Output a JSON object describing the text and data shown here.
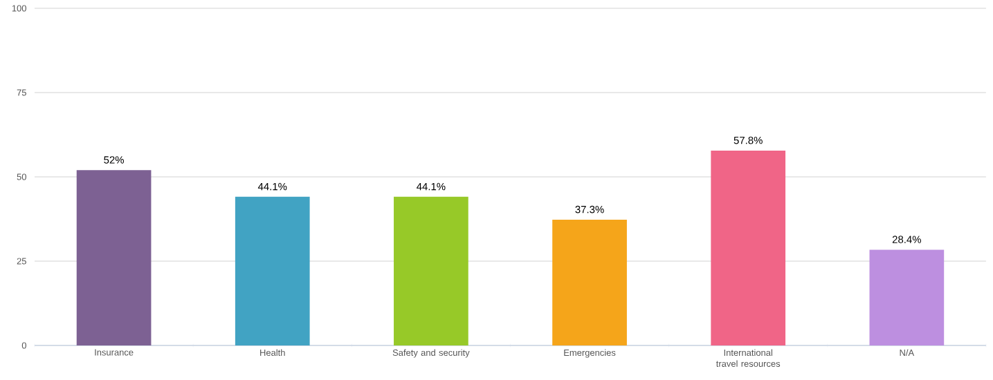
{
  "chart_data": {
    "type": "bar",
    "categories": [
      "Insurance",
      "Health",
      "Safety and security",
      "Emergencies",
      "International travel resources",
      "N/A"
    ],
    "values": [
      52,
      44.1,
      44.1,
      37.3,
      57.8,
      28.4
    ],
    "colors": [
      "#7d6193",
      "#41a3c3",
      "#97c928",
      "#f5a51a",
      "#f06587",
      "#bd8fe0"
    ],
    "value_labels": [
      "52%",
      "44.1%",
      "44.1%",
      "37.3%",
      "57.8%",
      "28.4%"
    ],
    "ylim": [
      0,
      100
    ],
    "yticks": [
      0,
      25,
      50,
      75,
      100
    ],
    "grid": "y"
  }
}
